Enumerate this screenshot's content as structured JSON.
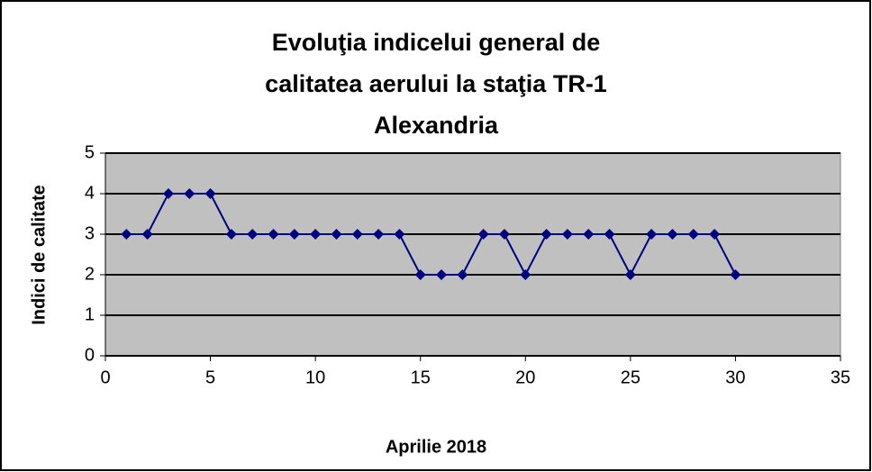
{
  "chart_data": {
    "type": "line",
    "title": "Evoluţia indicelui general de calitatea aerului la staţia TR-1 Alexandria",
    "x_label": "Aprilie 2018",
    "y_label": "Indici de calitate",
    "x": [
      1,
      2,
      3,
      4,
      5,
      6,
      7,
      8,
      9,
      10,
      11,
      12,
      13,
      14,
      15,
      16,
      17,
      18,
      19,
      20,
      21,
      22,
      23,
      24,
      25,
      26,
      27,
      28,
      29,
      30
    ],
    "series": [
      {
        "name": "Indici de calitate",
        "color": "#000080",
        "values": [
          3,
          3,
          4,
          4,
          4,
          3,
          3,
          3,
          3,
          3,
          3,
          3,
          3,
          3,
          2,
          2,
          2,
          3,
          3,
          2,
          3,
          3,
          3,
          3,
          2,
          3,
          3,
          3,
          3,
          2
        ]
      }
    ],
    "xlim": [
      0,
      35
    ],
    "xticks": [
      0,
      5,
      10,
      15,
      20,
      25,
      30,
      35
    ],
    "ylim": [
      0,
      5
    ],
    "yticks": [
      0,
      1,
      2,
      3,
      4,
      5
    ],
    "grid": true,
    "plot_background": "#c0c0c0"
  }
}
